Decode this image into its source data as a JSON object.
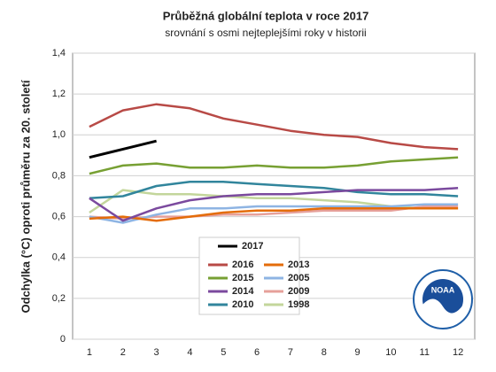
{
  "chart_data": {
    "type": "line",
    "title": "Průběžná globální teplota v roce 2017",
    "subtitle": "srovnání s osmi nejteplejšími roky v historii",
    "y_label": "Odchylka (°C) oproti průměru za 20. století",
    "categories": [
      "1",
      "2",
      "3",
      "4",
      "5",
      "6",
      "7",
      "8",
      "9",
      "10",
      "11",
      "12"
    ],
    "ylim": [
      0,
      1.4
    ],
    "yticks": [
      0,
      {
        "value": 0.2,
        "label": "0,2"
      },
      {
        "value": 0.4,
        "label": "0,4"
      },
      {
        "value": 0.6,
        "label": "0,6"
      },
      {
        "value": 0.8,
        "label": "0,8"
      },
      {
        "value": 1.0,
        "label": "1,0"
      },
      {
        "value": 1.2,
        "label": "1,2"
      },
      {
        "value": 1.4,
        "label": "1,4"
      }
    ],
    "grid": true,
    "logo": "NOAA",
    "series": [
      {
        "name": "2017",
        "color": "#000000",
        "values": [
          0.89,
          0.93,
          0.97,
          null,
          null,
          null,
          null,
          null,
          null,
          null,
          null,
          null
        ]
      },
      {
        "name": "2016",
        "color": "#b84a46",
        "values": [
          1.04,
          1.12,
          1.15,
          1.13,
          1.08,
          1.05,
          1.02,
          1.0,
          0.99,
          0.96,
          0.94,
          0.93
        ]
      },
      {
        "name": "2015",
        "color": "#77a033",
        "values": [
          0.81,
          0.85,
          0.86,
          0.84,
          0.84,
          0.85,
          0.84,
          0.84,
          0.85,
          0.87,
          0.88,
          0.89
        ]
      },
      {
        "name": "2014",
        "color": "#7b4a9e",
        "values": [
          0.69,
          0.58,
          0.64,
          0.68,
          0.7,
          0.71,
          0.71,
          0.72,
          0.73,
          0.73,
          0.73,
          0.74
        ]
      },
      {
        "name": "2010",
        "color": "#31859c",
        "values": [
          0.69,
          0.7,
          0.75,
          0.77,
          0.77,
          0.76,
          0.75,
          0.74,
          0.72,
          0.71,
          0.71,
          0.7
        ]
      },
      {
        "name": "2013",
        "color": "#e46c0a",
        "values": [
          0.59,
          0.6,
          0.58,
          0.6,
          0.62,
          0.63,
          0.63,
          0.64,
          0.64,
          0.64,
          0.64,
          0.64
        ]
      },
      {
        "name": "2005",
        "color": "#8eb4e3",
        "values": [
          0.6,
          0.57,
          0.61,
          0.64,
          0.64,
          0.65,
          0.65,
          0.65,
          0.65,
          0.65,
          0.66,
          0.66
        ]
      },
      {
        "name": "2009",
        "color": "#e6a09a",
        "values": [
          0.6,
          0.59,
          0.6,
          0.6,
          0.61,
          0.61,
          0.62,
          0.63,
          0.63,
          0.63,
          0.65,
          0.65
        ]
      },
      {
        "name": "1998",
        "color": "#c3d69b",
        "values": [
          0.62,
          0.73,
          0.71,
          0.71,
          0.7,
          0.69,
          0.69,
          0.68,
          0.67,
          0.65,
          0.64,
          0.64
        ]
      }
    ]
  }
}
